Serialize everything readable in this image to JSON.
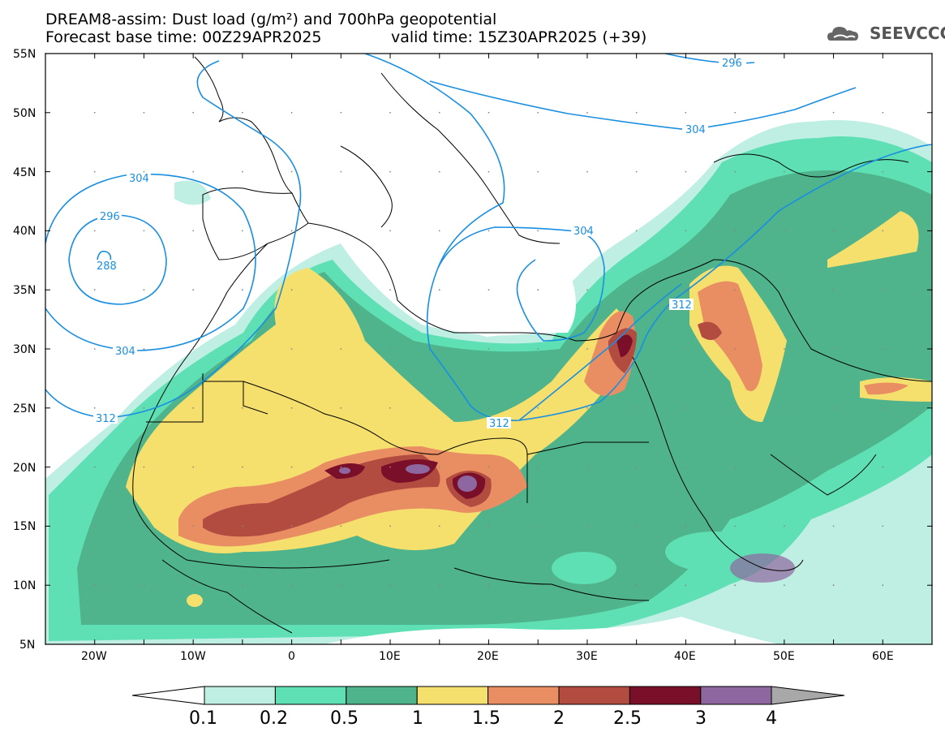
{
  "title": {
    "line1": "DREAM8-assim: Dust load (g/m²) and 700hPa geopotential",
    "line2_left": "Forecast base time: 00Z29APR2025",
    "line2_right": "valid time: 15Z30APR2025 (+39)"
  },
  "logo": {
    "text": "SEEVCCC",
    "icon": "cloud-logo-icon"
  },
  "axes": {
    "lat_labels": [
      "55N",
      "50N",
      "45N",
      "40N",
      "35N",
      "30N",
      "25N",
      "20N",
      "15N",
      "10N",
      "5N"
    ],
    "lon_labels": [
      "20W",
      "10W",
      "0",
      "10E",
      "20E",
      "30E",
      "40E",
      "50E",
      "60E"
    ]
  },
  "contours": {
    "labels": [
      "296",
      "304",
      "304",
      "296",
      "288",
      "304",
      "312",
      "304",
      "312",
      "312"
    ],
    "color": "#1a8fe0"
  },
  "colorbar": {
    "levels": [
      "0.1",
      "0.2",
      "0.5",
      "1",
      "1.5",
      "2",
      "2.5",
      "3",
      "4"
    ],
    "colors": [
      "#bfeee3",
      "#5fe0b4",
      "#4fb38b",
      "#f5e06e",
      "#e98e63",
      "#b24b40",
      "#7a0f2a",
      "#8e66a0",
      "#a8a8a8"
    ]
  },
  "chart_data": {
    "type": "heatmap",
    "title": "DREAM8-assim: Dust load (g/m²) and 700hPa geopotential",
    "x_range_deg": [
      -25,
      65
    ],
    "y_range_deg": [
      5,
      55
    ],
    "color_levels": [
      0.1,
      0.2,
      0.5,
      1,
      1.5,
      2,
      2.5,
      3,
      4
    ],
    "units": "g/m²",
    "geopotential_contours": [
      288,
      296,
      304,
      312
    ]
  }
}
